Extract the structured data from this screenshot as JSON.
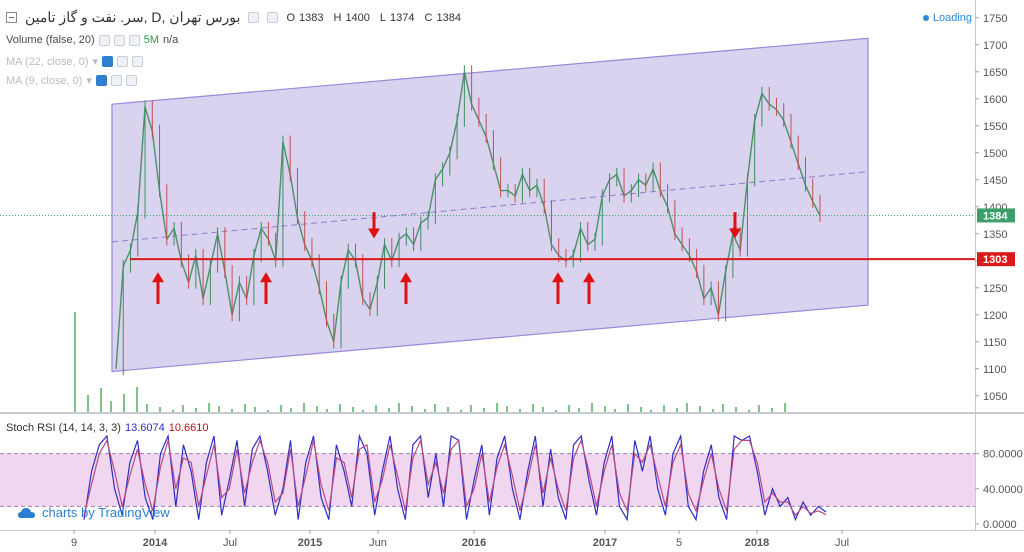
{
  "header": {
    "collapse_icon": "minus-square-icon",
    "symbol": "بورس تهران ,D ,سر. نفت و گاز تامین",
    "ohlc": [
      {
        "k": "O",
        "v": "1383"
      },
      {
        "k": "H",
        "v": "1400"
      },
      {
        "k": "L",
        "v": "1374"
      },
      {
        "k": "C",
        "v": "1384"
      }
    ],
    "loading": "Loading"
  },
  "indicators": {
    "volume": {
      "label": "Volume (false, 20)",
      "value": "5M",
      "na": "n/a"
    },
    "ma1": {
      "label": "MA (22, close, 0)"
    },
    "ma2": {
      "label": "MA (9, close, 0)"
    }
  },
  "stoch": {
    "label": "Stoch RSI (14, 14, 3, 3)",
    "k_value": "13.6074",
    "d_value": "10.6610"
  },
  "credit": "charts by TradingView",
  "colors": {
    "channel_fill": "#d9d3f0",
    "channel_edge": "#9a88d8",
    "support_line": "#d91a1a",
    "arrow": "#e01010",
    "last_price": "#3c9f6a",
    "stoch_band": "#f0d6ee",
    "k_line": "#2e2ec8",
    "d_line": "#b94a85"
  },
  "chart_data": [
    {
      "type": "line",
      "panel": "price",
      "ylim": [
        1020,
        1770
      ],
      "y_ticks": [
        "1750.0000",
        "1700.0000",
        "1650.0000",
        "1600.0000",
        "1550.0000",
        "1500.0000",
        "1450.0000",
        "1400.0000",
        "1350.0000",
        "1300.0000",
        "1250.0000",
        "1200.0000",
        "1150.0000",
        "1100.0000",
        "1050.0000"
      ],
      "x_ticks": [
        "9",
        "2014",
        "Jul",
        "2015",
        "Jun",
        "2016",
        "2017",
        "5",
        "2018",
        "Jul"
      ],
      "last_price_label": "1384",
      "support_label": "1303",
      "support_level": 1303,
      "series": [
        {
          "values": [
            1100,
            1290,
            1320,
            1390,
            1585,
            1540,
            1430,
            1340,
            1360,
            1300,
            1260,
            1310,
            1230,
            1290,
            1350,
            1280,
            1200,
            1260,
            1230,
            1310,
            1360,
            1340,
            1300,
            1520,
            1460,
            1380,
            1330,
            1300,
            1250,
            1190,
            1150,
            1260,
            1320,
            1300,
            1230,
            1210,
            1260,
            1330,
            1300,
            1340,
            1350,
            1330,
            1370,
            1380,
            1450,
            1470,
            1500,
            1560,
            1650,
            1590,
            1560,
            1530,
            1480,
            1430,
            1430,
            1420,
            1460,
            1430,
            1440,
            1400,
            1330,
            1310,
            1300,
            1310,
            1360,
            1330,
            1340,
            1420,
            1450,
            1460,
            1420,
            1430,
            1450,
            1440,
            1470,
            1430,
            1400,
            1350,
            1330,
            1310,
            1280,
            1230,
            1250,
            1200,
            1280,
            1350,
            1320,
            1450,
            1560,
            1610,
            1590,
            1580,
            1560,
            1520,
            1480,
            1440,
            1410,
            1384
          ]
        }
      ],
      "channel_upper": [
        1590,
        1712
      ],
      "channel_lower": [
        1095,
        1218
      ],
      "channel_mid": [
        1335,
        1465
      ],
      "up_arrows": 6,
      "down_arrows": 2
    },
    {
      "type": "line",
      "panel": "stoch_rsi",
      "ylim": [
        0,
        100
      ],
      "y_ticks": [
        "80.0000",
        "40.0000",
        "0.0000"
      ],
      "bands": [
        20,
        80
      ],
      "series": [
        {
          "name": "K",
          "values": [
            5,
            60,
            90,
            100,
            40,
            10,
            70,
            95,
            30,
            5,
            80,
            100,
            20,
            90,
            60,
            5,
            70,
            100,
            10,
            50,
            95,
            20,
            85,
            100,
            60,
            10,
            40,
            95,
            5,
            70,
            100,
            30,
            5,
            90,
            60,
            20,
            100,
            80,
            10,
            60,
            100,
            40,
            5,
            90,
            100,
            30,
            80,
            20,
            100,
            95,
            5,
            50,
            90,
            10,
            75,
            100,
            40,
            5,
            60,
            100,
            20,
            85,
            30,
            5,
            90,
            100,
            50,
            10,
            70,
            100,
            20,
            5,
            95,
            60,
            100,
            40,
            10,
            80,
            100,
            20,
            5,
            60,
            90,
            30,
            5,
            100,
            95,
            100,
            60,
            10,
            40,
            20,
            30,
            5,
            25,
            10,
            20,
            13.6
          ]
        },
        {
          "name": "D",
          "values": [
            10,
            45,
            80,
            95,
            60,
            20,
            55,
            85,
            45,
            15,
            65,
            95,
            40,
            75,
            70,
            20,
            55,
            90,
            30,
            40,
            85,
            35,
            70,
            95,
            70,
            25,
            35,
            85,
            20,
            55,
            95,
            45,
            15,
            75,
            70,
            30,
            85,
            90,
            25,
            50,
            90,
            55,
            15,
            75,
            95,
            45,
            70,
            35,
            85,
            95,
            20,
            40,
            80,
            25,
            65,
            90,
            55,
            15,
            50,
            90,
            35,
            75,
            40,
            15,
            75,
            95,
            60,
            20,
            60,
            90,
            35,
            15,
            80,
            70,
            90,
            55,
            20,
            70,
            90,
            35,
            15,
            50,
            80,
            40,
            15,
            85,
            95,
            95,
            70,
            25,
            35,
            25,
            25,
            10,
            20,
            12,
            15,
            10.7
          ]
        }
      ]
    }
  ]
}
